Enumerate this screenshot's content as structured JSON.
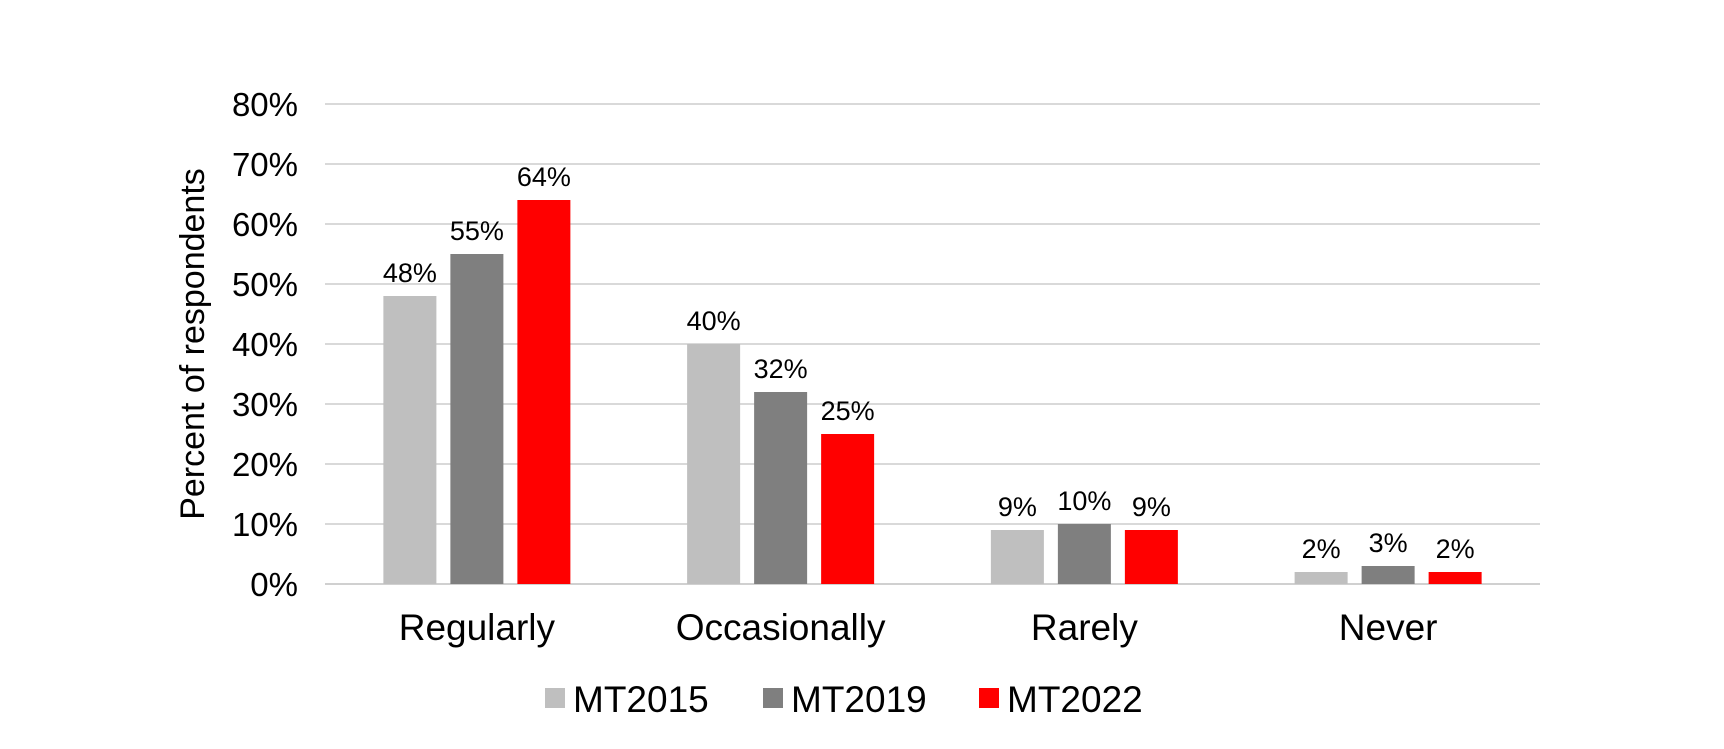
{
  "chart_data": {
    "type": "bar",
    "title": "",
    "xlabel": "",
    "ylabel": "Percent of respondents",
    "ylim": [
      0,
      80
    ],
    "yticks": [
      0,
      10,
      20,
      30,
      40,
      50,
      60,
      70,
      80
    ],
    "ytick_labels": [
      "0%",
      "10%",
      "20%",
      "30%",
      "40%",
      "50%",
      "60%",
      "70%",
      "80%"
    ],
    "grid": true,
    "legend_position": "bottom",
    "categories": [
      "Regularly",
      "Occasionally",
      "Rarely",
      "Never"
    ],
    "series": [
      {
        "name": "MT2015",
        "color": "#bfbfbf",
        "values": [
          48,
          40,
          9,
          2
        ],
        "labels": [
          "48%",
          "40%",
          "9%",
          "2%"
        ]
      },
      {
        "name": "MT2019",
        "color": "#7f7f7f",
        "values": [
          55,
          32,
          10,
          3
        ],
        "labels": [
          "55%",
          "32%",
          "10%",
          "3%"
        ]
      },
      {
        "name": "MT2022",
        "color": "#ff0000",
        "values": [
          64,
          25,
          9,
          2
        ],
        "labels": [
          "64%",
          "25%",
          "9%",
          "2%"
        ]
      }
    ]
  }
}
